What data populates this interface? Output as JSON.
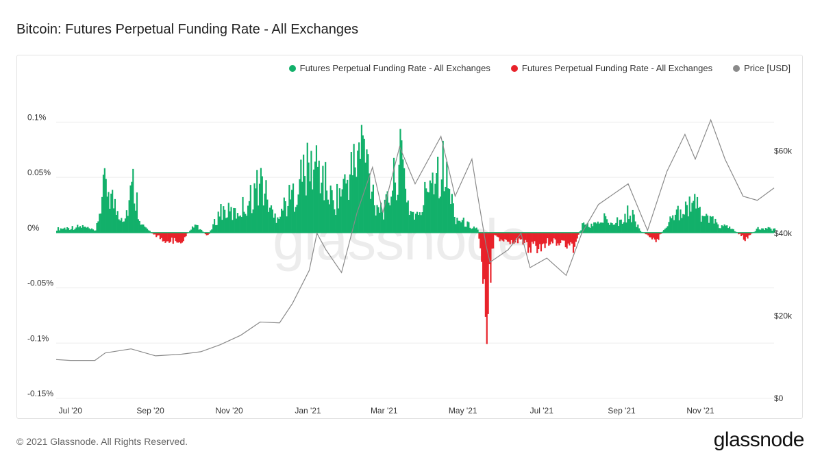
{
  "title": "Bitcoin: Futures Perpetual Funding Rate - All Exchanges",
  "footer": "© 2021 Glassnode. All Rights Reserved.",
  "brand": "glassnode",
  "watermark": "glassnode",
  "colors": {
    "positive": "#12b06a",
    "negative": "#e8222a",
    "price": "#8a8a8a",
    "grid": "#ececec"
  },
  "chart_data": {
    "type": "bar",
    "legend": [
      {
        "label": "Futures Perpetual Funding Rate - All Exchanges",
        "color": "#12b06a"
      },
      {
        "label": "Futures Perpetual Funding Rate - All Exchanges",
        "color": "#e8222a"
      },
      {
        "label": "Price [USD]",
        "color": "#8a8a8a"
      }
    ],
    "legend_position": "top-right",
    "grid": true,
    "x_range": [
      "2020-06-20",
      "2021-12-28"
    ],
    "x_ticks": [
      "Jul '20",
      "Sep '20",
      "Nov '20",
      "Jan '21",
      "Mar '21",
      "May '21",
      "Jul '21",
      "Sep '21",
      "Nov '21"
    ],
    "x_tick_dates": [
      "2020-07-01",
      "2020-09-01",
      "2020-11-01",
      "2021-01-01",
      "2021-03-01",
      "2021-05-01",
      "2021-07-01",
      "2021-09-01",
      "2021-11-01"
    ],
    "y_left": {
      "ylim": [
        -0.0015,
        0.0013
      ],
      "ticks": [
        0.001,
        0.0005,
        0,
        -0.0005,
        -0.001,
        -0.0015
      ],
      "tick_labels": [
        "0.1%",
        "0.05%",
        "0%",
        "-0.05%",
        "-0.1%",
        "-0.15%"
      ]
    },
    "y_right": {
      "ylim": [
        0,
        75000
      ],
      "ticks": [
        60000,
        40000,
        20000,
        0
      ],
      "tick_labels": [
        "$60k",
        "$40k",
        "$20k",
        "$0"
      ]
    },
    "funding_rate_series": {
      "name": "Futures Perpetual Funding Rate - All Exchanges",
      "anchors": [
        [
          "2020-06-20",
          5e-05
        ],
        [
          "2020-07-10",
          8e-05
        ],
        [
          "2020-07-20",
          2e-05
        ],
        [
          "2020-07-28",
          0.0007
        ],
        [
          "2020-08-05",
          0.0003
        ],
        [
          "2020-08-12",
          0.0002
        ],
        [
          "2020-08-18",
          0.00065
        ],
        [
          "2020-08-25",
          0.0001
        ],
        [
          "2020-09-05",
          -5e-05
        ],
        [
          "2020-09-15",
          -0.00012
        ],
        [
          "2020-09-25",
          -0.0001
        ],
        [
          "2020-10-05",
          0.0001
        ],
        [
          "2020-10-15",
          -5e-05
        ],
        [
          "2020-10-25",
          0.0003
        ],
        [
          "2020-11-05",
          0.00025
        ],
        [
          "2020-11-15",
          0.0004
        ],
        [
          "2020-11-25",
          0.0007
        ],
        [
          "2020-12-05",
          0.0002
        ],
        [
          "2020-12-20",
          0.0005
        ],
        [
          "2020-12-28",
          0.0008
        ],
        [
          "2021-01-08",
          0.0009
        ],
        [
          "2021-01-20",
          0.0004
        ],
        [
          "2021-01-28",
          0.0006
        ],
        [
          "2021-02-08",
          0.001
        ],
        [
          "2021-02-12",
          0.0012
        ],
        [
          "2021-02-22",
          0.0004
        ],
        [
          "2021-03-01",
          0.0003
        ],
        [
          "2021-03-10",
          0.0008
        ],
        [
          "2021-03-14",
          0.001
        ],
        [
          "2021-03-20",
          0.0003
        ],
        [
          "2021-03-28",
          0.0002
        ],
        [
          "2021-04-05",
          0.0008
        ],
        [
          "2021-04-15",
          0.0009
        ],
        [
          "2021-04-25",
          0.0002
        ],
        [
          "2021-05-05",
          0.0001
        ],
        [
          "2021-05-12",
          5e-05
        ],
        [
          "2021-05-15",
          -0.0003
        ],
        [
          "2021-05-19",
          -0.0011
        ],
        [
          "2021-05-25",
          -5e-05
        ],
        [
          "2021-06-05",
          -0.00015
        ],
        [
          "2021-06-15",
          -0.0001
        ],
        [
          "2021-06-20",
          -0.0002
        ],
        [
          "2021-06-28",
          -0.0002
        ],
        [
          "2021-07-08",
          -0.0001
        ],
        [
          "2021-07-18",
          -0.00015
        ],
        [
          "2021-07-25",
          -0.0002
        ],
        [
          "2021-08-01",
          0.0001
        ],
        [
          "2021-08-10",
          0.0001
        ],
        [
          "2021-08-20",
          0.0002
        ],
        [
          "2021-09-01",
          0.00015
        ],
        [
          "2021-09-07",
          0.0003
        ],
        [
          "2021-09-15",
          2e-05
        ],
        [
          "2021-09-28",
          -0.0001
        ],
        [
          "2021-10-05",
          0.0001
        ],
        [
          "2021-10-15",
          0.0003
        ],
        [
          "2021-10-25",
          0.0004
        ],
        [
          "2021-11-05",
          0.0002
        ],
        [
          "2021-11-15",
          0.0001
        ],
        [
          "2021-11-25",
          5e-05
        ],
        [
          "2021-12-05",
          -8e-05
        ],
        [
          "2021-12-15",
          5e-05
        ],
        [
          "2021-12-28",
          5e-05
        ]
      ]
    },
    "price_series": {
      "name": "Price [USD]",
      "points": [
        [
          "2020-06-20",
          9400
        ],
        [
          "2020-07-01",
          9200
        ],
        [
          "2020-07-20",
          9200
        ],
        [
          "2020-07-28",
          11000
        ],
        [
          "2020-08-17",
          12000
        ],
        [
          "2020-09-05",
          10300
        ],
        [
          "2020-09-25",
          10700
        ],
        [
          "2020-10-10",
          11300
        ],
        [
          "2020-10-25",
          13000
        ],
        [
          "2020-11-10",
          15300
        ],
        [
          "2020-11-25",
          18500
        ],
        [
          "2020-12-10",
          18300
        ],
        [
          "2020-12-20",
          23000
        ],
        [
          "2021-01-02",
          31000
        ],
        [
          "2021-01-08",
          40000
        ],
        [
          "2021-01-15",
          36000
        ],
        [
          "2021-01-27",
          30500
        ],
        [
          "2021-02-08",
          45000
        ],
        [
          "2021-02-20",
          56000
        ],
        [
          "2021-02-28",
          45000
        ],
        [
          "2021-03-13",
          61000
        ],
        [
          "2021-03-25",
          52000
        ],
        [
          "2021-04-14",
          63500
        ],
        [
          "2021-04-25",
          49000
        ],
        [
          "2021-05-08",
          58000
        ],
        [
          "2021-05-12",
          50000
        ],
        [
          "2021-05-19",
          37000
        ],
        [
          "2021-05-22",
          33000
        ],
        [
          "2021-06-05",
          36000
        ],
        [
          "2021-06-15",
          40000
        ],
        [
          "2021-06-22",
          31700
        ],
        [
          "2021-07-05",
          34000
        ],
        [
          "2021-07-20",
          29800
        ],
        [
          "2021-08-01",
          40000
        ],
        [
          "2021-08-14",
          47000
        ],
        [
          "2021-09-06",
          52000
        ],
        [
          "2021-09-21",
          40700
        ],
        [
          "2021-10-06",
          55000
        ],
        [
          "2021-10-20",
          64000
        ],
        [
          "2021-10-28",
          58000
        ],
        [
          "2021-11-09",
          67500
        ],
        [
          "2021-11-20",
          58000
        ],
        [
          "2021-12-04",
          49000
        ],
        [
          "2021-12-15",
          48000
        ],
        [
          "2021-12-28",
          51000
        ]
      ]
    }
  }
}
